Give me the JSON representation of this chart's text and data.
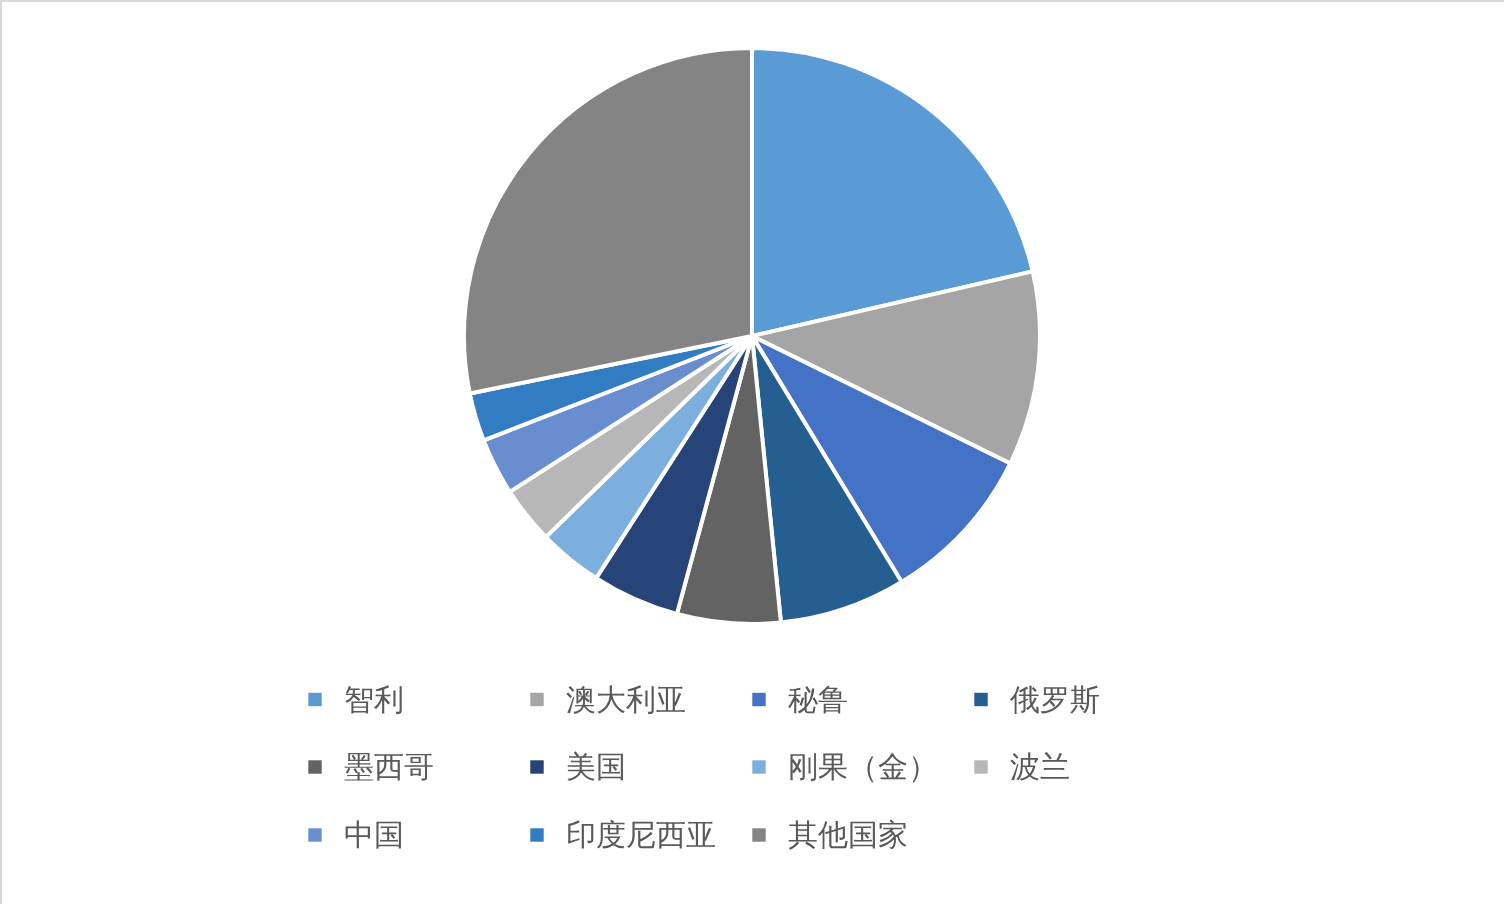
{
  "chart_data": {
    "type": "pie",
    "categories": [
      "智利",
      "澳大利亚",
      "秘鲁",
      "俄罗斯",
      "墨西哥",
      "美国",
      "刚果（金）",
      "波兰",
      "中国",
      "印度尼西亚",
      "其他国家"
    ],
    "values": [
      21.4,
      10.9,
      9.0,
      7.1,
      5.8,
      4.9,
      3.6,
      3.2,
      3.2,
      2.7,
      28.2
    ],
    "colors": [
      "#5b9bd5",
      "#a5a5a5",
      "#4472c4",
      "#255e91",
      "#636363",
      "#264478",
      "#7cafdd",
      "#b7b7b7",
      "#698ed0",
      "#327dc2",
      "#848484"
    ],
    "legend": "bottom"
  }
}
